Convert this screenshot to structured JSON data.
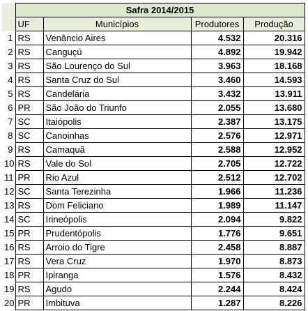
{
  "title": "Safra 2014/2015",
  "colors": {
    "header_fill": "#e8eedb",
    "title_fill": "#dfe8cd",
    "border": "#000000"
  },
  "headers": {
    "uf": "UF",
    "municipio": "Municípios",
    "produtores": "Produtores",
    "producao": "Produção"
  },
  "rows": [
    {
      "n": "1",
      "uf": "RS",
      "municipio": "Venâncio Aires",
      "produtores": "4.532",
      "producao": "20.316"
    },
    {
      "n": "2",
      "uf": "RS",
      "municipio": "Canguçú",
      "produtores": "4.892",
      "producao": "19.942"
    },
    {
      "n": "3",
      "uf": "RS",
      "municipio": "São Lourenço do Sul",
      "produtores": "3.963",
      "producao": "18.168"
    },
    {
      "n": "4",
      "uf": "RS",
      "municipio": "Santa Cruz do Sul",
      "produtores": "3.460",
      "producao": "14.593"
    },
    {
      "n": "5",
      "uf": "RS",
      "municipio": "Candelária",
      "produtores": "3.432",
      "producao": "13.911"
    },
    {
      "n": "6",
      "uf": "PR",
      "municipio": "São João do Triunfo",
      "produtores": "2.055",
      "producao": "13.680"
    },
    {
      "n": "7",
      "uf": "SC",
      "municipio": "Itaiópolis",
      "produtores": "2.387",
      "producao": "13.175"
    },
    {
      "n": "8",
      "uf": "SC",
      "municipio": "Canoinhas",
      "produtores": "2.576",
      "producao": "12.971"
    },
    {
      "n": "9",
      "uf": "RS",
      "municipio": "Camaquã",
      "produtores": "2.588",
      "producao": "12.952"
    },
    {
      "n": "10",
      "uf": "RS",
      "municipio": "Vale do Sol",
      "produtores": "2.705",
      "producao": "12.722"
    },
    {
      "n": "11",
      "uf": "PR",
      "municipio": "Rio Azul",
      "produtores": "2.512",
      "producao": "12.702"
    },
    {
      "n": "12",
      "uf": "SC",
      "municipio": "Santa Terezinha",
      "produtores": "1.966",
      "producao": "11.236"
    },
    {
      "n": "13",
      "uf": "RS",
      "municipio": "Dom Feliciano",
      "produtores": "1.989",
      "producao": "11.147"
    },
    {
      "n": "14",
      "uf": "SC",
      "municipio": "Irineópolis",
      "produtores": "2.094",
      "producao": "9.822"
    },
    {
      "n": "15",
      "uf": "PR",
      "municipio": "Prudentópolis",
      "produtores": "1.776",
      "producao": "9.651"
    },
    {
      "n": "16",
      "uf": "RS",
      "municipio": "Arroio do Tigre",
      "produtores": "2.458",
      "producao": "8.887"
    },
    {
      "n": "17",
      "uf": "RS",
      "municipio": "Vera Cruz",
      "produtores": "1.970",
      "producao": "8.873"
    },
    {
      "n": "18",
      "uf": "PR",
      "municipio": "Ipiranga",
      "produtores": "1.576",
      "producao": "8.432"
    },
    {
      "n": "19",
      "uf": "RS",
      "municipio": "Agudo",
      "produtores": "2.244",
      "producao": "8.424"
    },
    {
      "n": "20",
      "uf": "PR",
      "municipio": "Imbituva",
      "produtores": "1.287",
      "producao": "8.226"
    }
  ]
}
